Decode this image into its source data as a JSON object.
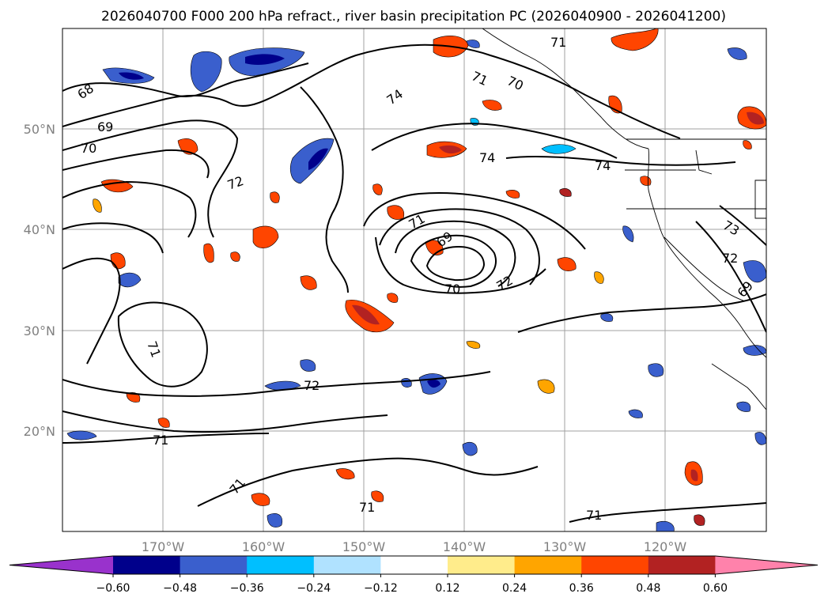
{
  "title": "2026040700 F000 200 hPa refract., river basin precipitation PC (2026040900 - 2026041200)",
  "map": {
    "lon_range": [
      -180,
      -110
    ],
    "lat_range": [
      10,
      60
    ],
    "lat_labels": [
      "50°N",
      "40°N",
      "30°N",
      "20°N"
    ],
    "lon_labels": [
      "170°W",
      "160°W",
      "150°W",
      "140°W",
      "130°W",
      "120°W"
    ],
    "contour_labels": [
      "68",
      "69",
      "70",
      "72",
      "74",
      "71",
      "70",
      "71",
      "74",
      "74",
      "71",
      "69",
      "70",
      "72",
      "73",
      "72",
      "71",
      "72",
      "71",
      "71",
      "71",
      "71",
      "69"
    ]
  },
  "colorbar": {
    "ticks": [
      "−0.60",
      "−0.48",
      "−0.36",
      "−0.24",
      "−0.12",
      "0.12",
      "0.24",
      "0.36",
      "0.48",
      "0.60"
    ],
    "colors": [
      "#9932cc",
      "#00008b",
      "#3a5fcd",
      "#00bfff",
      "#b0e2ff",
      "#ffffff",
      "#ffec8b",
      "#ffa500",
      "#ff4500",
      "#b22222",
      "#ff82ab"
    ]
  }
}
